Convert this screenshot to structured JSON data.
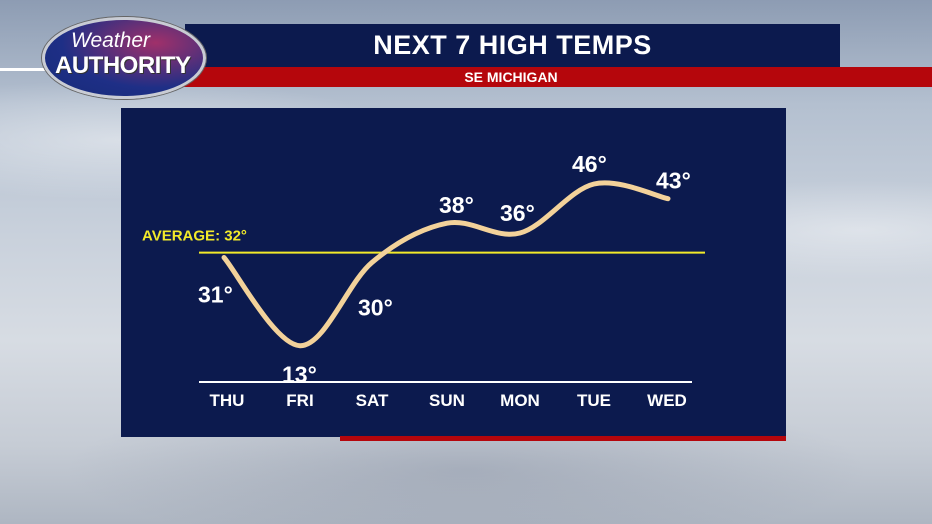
{
  "header": {
    "title": "NEXT 7 HIGH TEMPS",
    "subtitle": "SE MICHIGAN",
    "logo_text": "Weather AUTHORITY",
    "logo_line1": "Weather",
    "logo_line2": "AUTHORITY"
  },
  "colors": {
    "panel": "#0c1a4e",
    "accent_red": "#b5060c",
    "curve": "#f3d29a",
    "average_line": "#f2ea2a"
  },
  "chart_data": {
    "type": "line",
    "title": "NEXT 7 HIGH TEMPS",
    "categories": [
      "THU",
      "FRI",
      "SAT",
      "SUN",
      "MON",
      "TUE",
      "WED"
    ],
    "values": [
      31,
      13,
      30,
      38,
      36,
      46,
      43
    ],
    "labels": [
      "31°",
      "13°",
      "30°",
      "38°",
      "36°",
      "46°",
      "43°"
    ],
    "average": {
      "label": "AVERAGE: 32°",
      "value": 32
    },
    "grid": false
  }
}
